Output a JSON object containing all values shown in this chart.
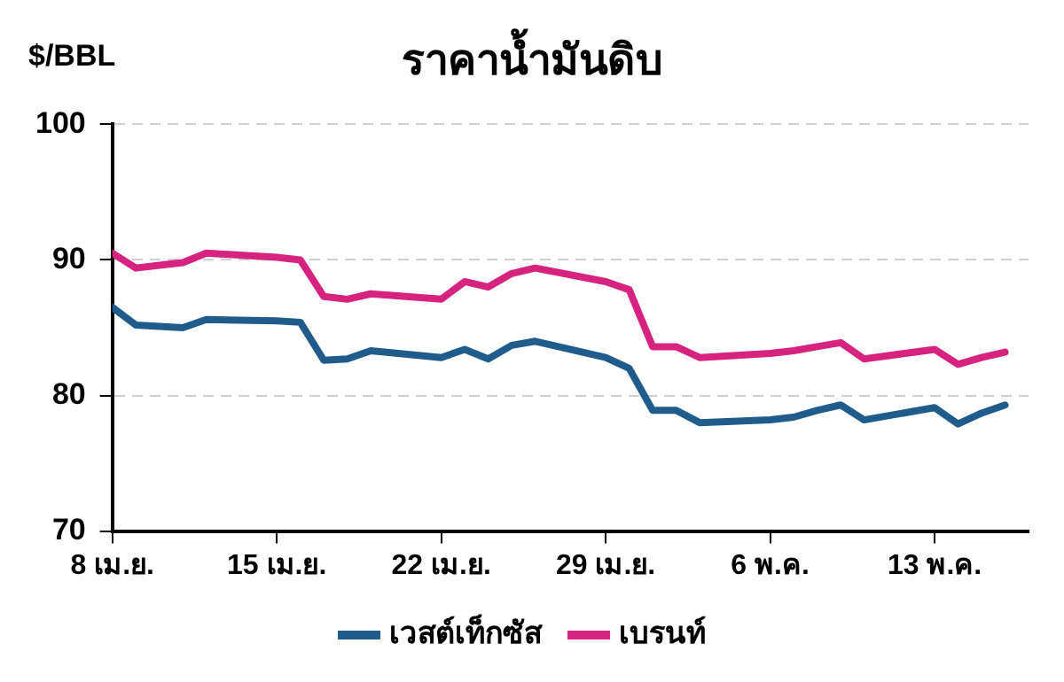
{
  "chart_data": {
    "type": "line",
    "title": "ราคาน้ำมันดิบ",
    "ylabel": "$/BBL",
    "ylim": [
      70,
      100
    ],
    "yticks": [
      70,
      80,
      90,
      100
    ],
    "xlim": [
      "--04-08",
      "--05-17"
    ],
    "xticks": [
      {
        "value": "--04-08",
        "label": "8 เม.ย."
      },
      {
        "value": "--04-15",
        "label": "15 เม.ย."
      },
      {
        "value": "--04-22",
        "label": "22 เม.ย."
      },
      {
        "value": "--04-29",
        "label": "29 เม.ย."
      },
      {
        "value": "--05-06",
        "label": "6 พ.ค."
      },
      {
        "value": "--05-13",
        "label": "13 พ.ค."
      }
    ],
    "x": [
      "--04-08",
      "--04-09",
      "--04-10",
      "--04-11",
      "--04-12",
      "--04-15",
      "--04-16",
      "--04-17",
      "--04-18",
      "--04-19",
      "--04-22",
      "--04-23",
      "--04-24",
      "--04-25",
      "--04-26",
      "--04-29",
      "--04-30",
      "--05-01",
      "--05-02",
      "--05-03",
      "--05-06",
      "--05-07",
      "--05-08",
      "--05-09",
      "--05-10",
      "--05-13",
      "--05-14",
      "--05-15",
      "--05-16"
    ],
    "series": [
      {
        "name": "เวสต์เท็กซัส",
        "color": "#1f5c8c",
        "values": [
          86.5,
          85.2,
          85.1,
          85.0,
          85.6,
          85.5,
          85.4,
          82.6,
          82.7,
          83.3,
          82.8,
          83.4,
          82.7,
          83.7,
          84.0,
          82.8,
          82.0,
          78.9,
          78.9,
          78.0,
          78.2,
          78.4,
          78.9,
          79.3,
          78.2,
          79.1,
          77.9,
          78.7,
          79.3
        ]
      },
      {
        "name": "เบรนท์",
        "color": "#d6237f",
        "values": [
          90.5,
          89.4,
          89.6,
          89.8,
          90.5,
          90.2,
          90.0,
          87.3,
          87.1,
          87.5,
          87.1,
          88.4,
          88.0,
          89.0,
          89.4,
          88.4,
          87.8,
          83.6,
          83.6,
          82.8,
          83.1,
          83.3,
          83.6,
          83.9,
          82.7,
          83.4,
          82.3,
          82.8,
          83.2
        ]
      }
    ],
    "grid": "y",
    "legend": "bottom",
    "marker": "none",
    "line_style": "solid"
  }
}
